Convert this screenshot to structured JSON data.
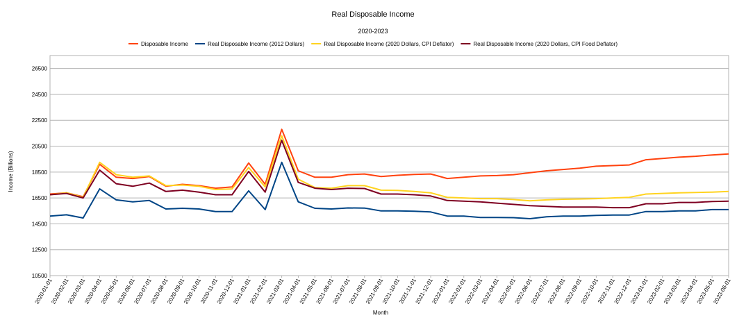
{
  "chart_data": {
    "type": "line",
    "title": "Real Disposable Income",
    "subtitle": "2020-2023",
    "xlabel": "Month",
    "ylabel": "Income (Billions)",
    "ylim": [
      10500,
      27500
    ],
    "yticks": [
      10500,
      12500,
      14500,
      16500,
      18500,
      20500,
      22500,
      24500,
      26500
    ],
    "grid": "horizontal",
    "legend": "top",
    "categories": [
      "2020-01-01",
      "2020-02-01",
      "2020-03-01",
      "2020-04-01",
      "2020-05-01",
      "2020-06-01",
      "2020-07-01",
      "2020-08-01",
      "2020-09-01",
      "2020-10-01",
      "2020-11-01",
      "2020-12-01",
      "2021-01-01",
      "2021-02-01",
      "2021-03-01",
      "2021-04-01",
      "2021-05-01",
      "2021-06-01",
      "2021-07-01",
      "2021-08-01",
      "2021-09-01",
      "2021-10-01",
      "2021-11-01",
      "2021-12-01",
      "2022-01-01",
      "2022-02-01",
      "2022-03-01",
      "2022-04-01",
      "2022-05-01",
      "2022-06-01",
      "2022-07-01",
      "2022-08-01",
      "2022-09-01",
      "2022-10-01",
      "2022-11-01",
      "2022-12-01",
      "2023-01-01",
      "2023-02-01",
      "2023-03-01",
      "2023-04-01",
      "2023-05-01",
      "2023-06-01"
    ],
    "series": [
      {
        "name": "Disposable Income",
        "color": "#ff420e",
        "values": [
          16800,
          16900,
          16600,
          19100,
          18100,
          18000,
          18150,
          17400,
          17550,
          17450,
          17250,
          17350,
          19200,
          17550,
          21800,
          18600,
          18100,
          18100,
          18300,
          18350,
          18150,
          18250,
          18320,
          18350,
          18000,
          18100,
          18200,
          18230,
          18300,
          18450,
          18600,
          18700,
          18800,
          18950,
          19000,
          19050,
          19450,
          19550,
          19650,
          19720,
          19820,
          19900
        ]
      },
      {
        "name": "Real Disposable Income (2012 Dollars)",
        "color": "#004586",
        "values": [
          15100,
          15200,
          14950,
          17200,
          16350,
          16200,
          16300,
          15650,
          15700,
          15650,
          15450,
          15450,
          17050,
          15600,
          19250,
          16200,
          15700,
          15650,
          15730,
          15720,
          15500,
          15500,
          15470,
          15420,
          15100,
          15100,
          14990,
          14990,
          14980,
          14900,
          15050,
          15100,
          15100,
          15150,
          15180,
          15180,
          15450,
          15450,
          15500,
          15500,
          15600,
          15600
        ]
      },
      {
        "name": "Real Disposable Income (2020 Dollars, CPI Deflator)",
        "color": "#ffd320",
        "values": [
          16750,
          16900,
          16550,
          19250,
          18300,
          18100,
          18200,
          17450,
          17500,
          17400,
          17150,
          17200,
          18850,
          17350,
          21300,
          17950,
          17300,
          17250,
          17450,
          17450,
          17100,
          17080,
          17000,
          16900,
          16550,
          16500,
          16450,
          16450,
          16380,
          16280,
          16350,
          16400,
          16420,
          16450,
          16500,
          16550,
          16800,
          16850,
          16900,
          16920,
          16950,
          17000
        ]
      },
      {
        "name": "Real Disposable Income (2020 Dollars, CPI Food Deflator)",
        "color": "#7e0021",
        "values": [
          16750,
          16850,
          16500,
          18650,
          17600,
          17400,
          17650,
          17000,
          17100,
          16950,
          16750,
          16750,
          18550,
          16950,
          20950,
          17700,
          17250,
          17150,
          17250,
          17230,
          16800,
          16800,
          16750,
          16650,
          16300,
          16250,
          16200,
          16100,
          16000,
          15900,
          15850,
          15800,
          15800,
          15800,
          15750,
          15750,
          16050,
          16050,
          16150,
          16150,
          16230,
          16250
        ]
      }
    ]
  }
}
